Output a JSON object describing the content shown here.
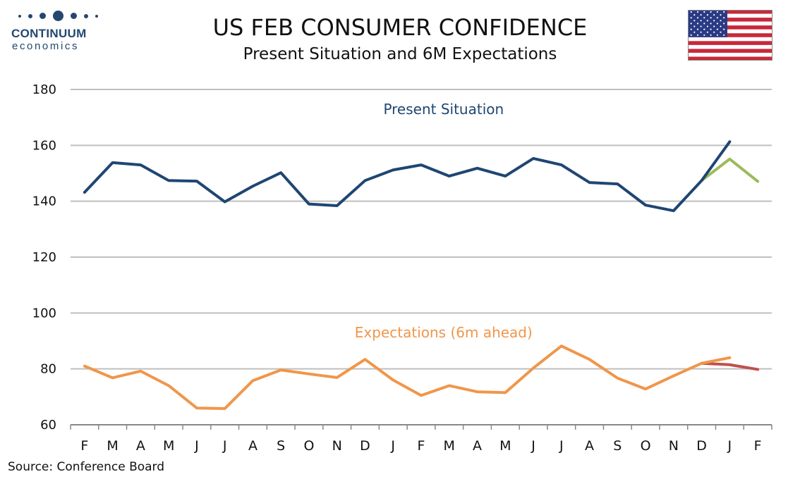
{
  "header": {
    "logo_brand": "CONTINUUM",
    "logo_sub": "economics",
    "title": "US FEB CONSUMER CONFIDENCE",
    "subtitle": "Present Situation and 6M Expectations",
    "flag_icon": "us-flag-icon"
  },
  "footer": {
    "source": "Source: Conference Board"
  },
  "colors": {
    "present": "#1f4672",
    "expectations": "#f0964a",
    "present_revised": "#9bbb59",
    "expectations_revised": "#c0504d",
    "grid": "#bfbfbf"
  },
  "chart_data": {
    "type": "line",
    "title": "US FEB CONSUMER CONFIDENCE",
    "subtitle": "Present Situation and 6M Expectations",
    "xlabel": "",
    "ylabel": "",
    "ylim": [
      60,
      180
    ],
    "yticks": [
      60,
      80,
      100,
      120,
      140,
      160,
      180
    ],
    "grid": true,
    "categories": [
      "F",
      "M",
      "A",
      "M",
      "J",
      "J",
      "A",
      "S",
      "O",
      "N",
      "D",
      "J",
      "F",
      "M",
      "A",
      "M",
      "J",
      "J",
      "A",
      "S",
      "O",
      "N",
      "D",
      "J",
      "F"
    ],
    "series": [
      {
        "name": "Present Situation",
        "color": "#1f4672",
        "values": [
          143.2,
          153.8,
          153.0,
          147.4,
          147.2,
          139.8,
          145.4,
          150.2,
          139.0,
          138.4,
          147.4,
          151.2,
          153.0,
          149.0,
          151.8,
          149.0,
          155.3,
          153.0,
          146.7,
          146.2,
          138.6,
          136.6,
          147.4,
          161.3,
          null
        ]
      },
      {
        "name": "Expectations (6m ahead)",
        "color": "#f0964a",
        "values": [
          81.0,
          76.8,
          79.2,
          74.0,
          66.0,
          65.8,
          75.8,
          79.6,
          78.2,
          76.9,
          83.4,
          76.0,
          70.5,
          74.0,
          71.8,
          71.5,
          80.3,
          88.2,
          83.4,
          76.7,
          72.8,
          77.5,
          82.0,
          84.0,
          null
        ]
      },
      {
        "values": [
          null,
          null,
          null,
          null,
          null,
          null,
          null,
          null,
          null,
          null,
          null,
          null,
          null,
          null,
          null,
          null,
          null,
          null,
          null,
          null,
          null,
          null,
          147.4,
          155.1,
          147.1
        ],
        "color": "#9bbb59"
      },
      {
        "values": [
          null,
          null,
          null,
          null,
          null,
          null,
          null,
          null,
          null,
          null,
          null,
          null,
          null,
          null,
          null,
          null,
          null,
          null,
          null,
          null,
          null,
          null,
          82.0,
          81.5,
          79.8
        ],
        "color": "#c0504d"
      }
    ],
    "annotations": [
      {
        "text": "Present Situation",
        "color": "#1f4672",
        "x_index": 13,
        "y": 173
      },
      {
        "text": "Expectations (6m ahead)",
        "color": "#f0964a",
        "x_index": 13,
        "y": 93
      }
    ]
  }
}
